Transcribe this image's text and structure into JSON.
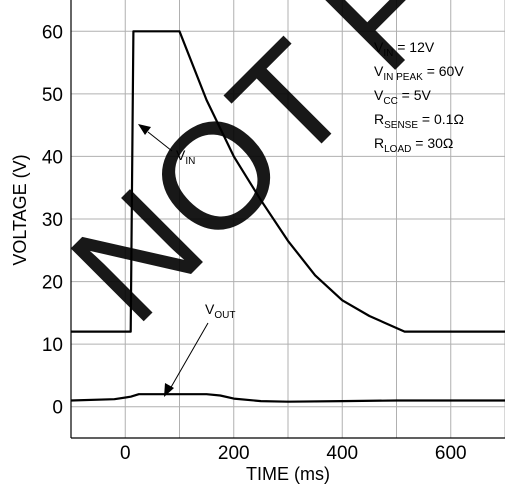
{
  "chart_data": {
    "type": "line",
    "title": "",
    "xlabel": "TIME (ms)",
    "ylabel": "VOLTAGE (V)",
    "xlim": [
      -100,
      700
    ],
    "ylim": [
      -5,
      65
    ],
    "xticks": [
      0,
      200,
      400,
      600
    ],
    "yticks": [
      0,
      10,
      20,
      30,
      40,
      50,
      60
    ],
    "x_tick_labels": [
      "0",
      "200",
      "400",
      "600"
    ],
    "y_tick_labels": [
      "0",
      "10",
      "20",
      "30",
      "40",
      "50",
      "60"
    ],
    "grid": true,
    "series": [
      {
        "name": "VIN",
        "x": [
          -100,
          10,
          15,
          100,
          150,
          200,
          250,
          300,
          350,
          400,
          450,
          515,
          700
        ],
        "y": [
          12,
          12,
          60,
          60,
          49,
          40,
          33,
          26.5,
          21,
          17,
          14.5,
          12,
          12
        ]
      },
      {
        "name": "VOUT",
        "x": [
          -100,
          -20,
          10,
          25,
          50,
          100,
          150,
          175,
          200,
          250,
          300,
          400,
          500,
          600,
          700
        ],
        "y": [
          1.0,
          1.2,
          1.6,
          2.0,
          2.0,
          2.0,
          2.0,
          1.8,
          1.3,
          0.9,
          0.8,
          0.9,
          1.0,
          1.0,
          1.0
        ]
      }
    ],
    "annotations": {
      "vin_label": {
        "main": "V",
        "sub": "IN"
      },
      "vout_label": {
        "main": "V",
        "sub": "OUT"
      },
      "conditions": [
        {
          "main": "V",
          "sub": "IN",
          "rest": " = 12V"
        },
        {
          "main": "V",
          "sub": "IN PEAK",
          "rest": " = 60V"
        },
        {
          "main": "V",
          "sub": "CC",
          "rest": " = 5V"
        },
        {
          "main": "R",
          "sub": "SENSE",
          "rest": " = 0.1Ω"
        },
        {
          "main": "R",
          "sub": "LOAD",
          "rest": " = 30Ω"
        }
      ]
    }
  },
  "watermark": {
    "text": "NOT FOR N",
    "color": "#000000"
  },
  "colors": {
    "line": "#000000",
    "grid": "#b0b0b0",
    "axis": "#000000"
  }
}
